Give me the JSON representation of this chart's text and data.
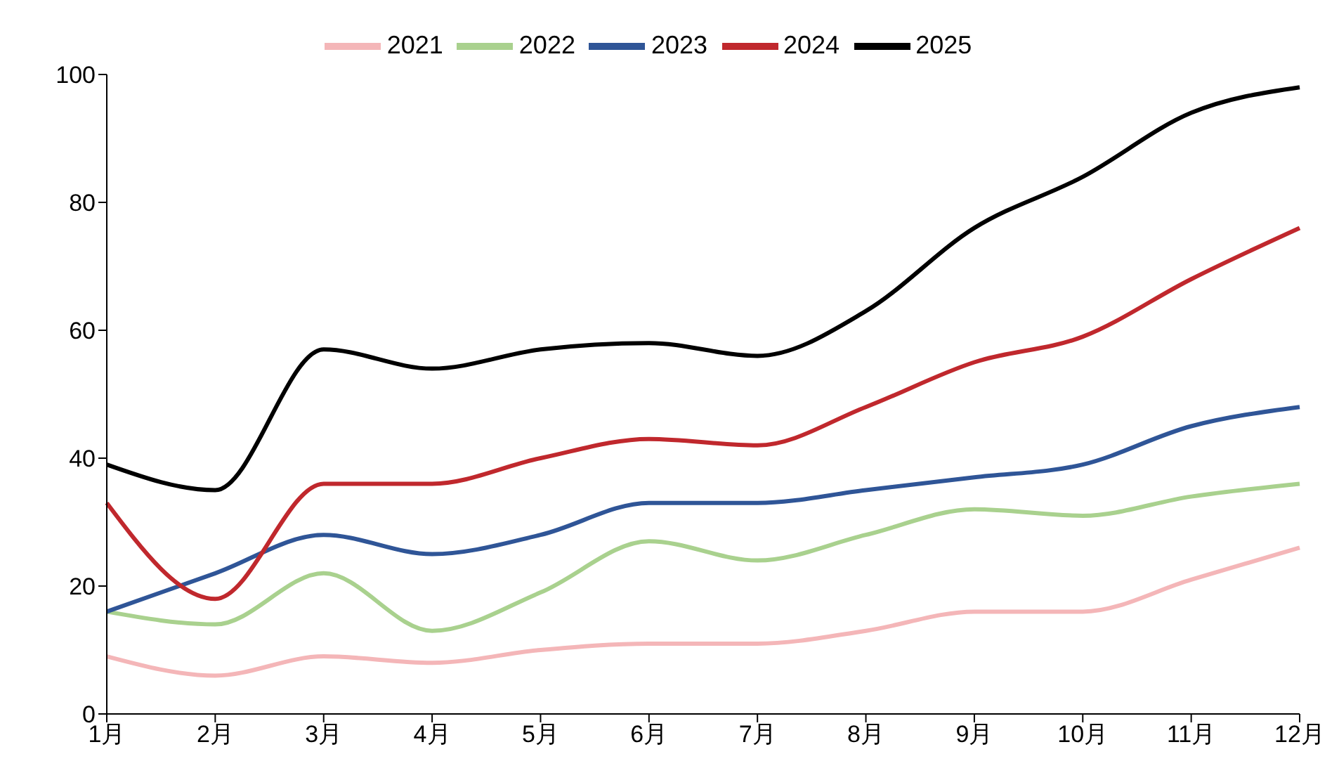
{
  "chart_data": {
    "type": "line",
    "categories": [
      "1月",
      "2月",
      "3月",
      "4月",
      "5月",
      "6月",
      "7月",
      "8月",
      "9月",
      "10月",
      "11月",
      "12月"
    ],
    "series": [
      {
        "name": "2021",
        "color": "#f4b6b8",
        "values": [
          9,
          6,
          9,
          8,
          10,
          11,
          11,
          13,
          16,
          16,
          21,
          26
        ]
      },
      {
        "name": "2022",
        "color": "#a9d18e",
        "values": [
          16,
          14,
          22,
          13,
          19,
          27,
          24,
          28,
          32,
          31,
          34,
          36
        ]
      },
      {
        "name": "2023",
        "color": "#2f5597",
        "values": [
          16,
          22,
          28,
          25,
          28,
          33,
          33,
          35,
          37,
          39,
          45,
          48
        ]
      },
      {
        "name": "2024",
        "color": "#c0282d",
        "values": [
          33,
          18,
          36,
          36,
          40,
          43,
          42,
          48,
          55,
          59,
          68,
          76
        ]
      },
      {
        "name": "2025",
        "color": "#000000",
        "values": [
          39,
          35,
          57,
          54,
          57,
          58,
          56,
          63,
          76,
          84,
          94,
          98
        ]
      }
    ],
    "ylim": [
      0,
      100
    ],
    "yticks": [
      0,
      20,
      40,
      60,
      80,
      100
    ],
    "grid": false,
    "legend": "top",
    "marker": "none",
    "line_style": "solid"
  }
}
